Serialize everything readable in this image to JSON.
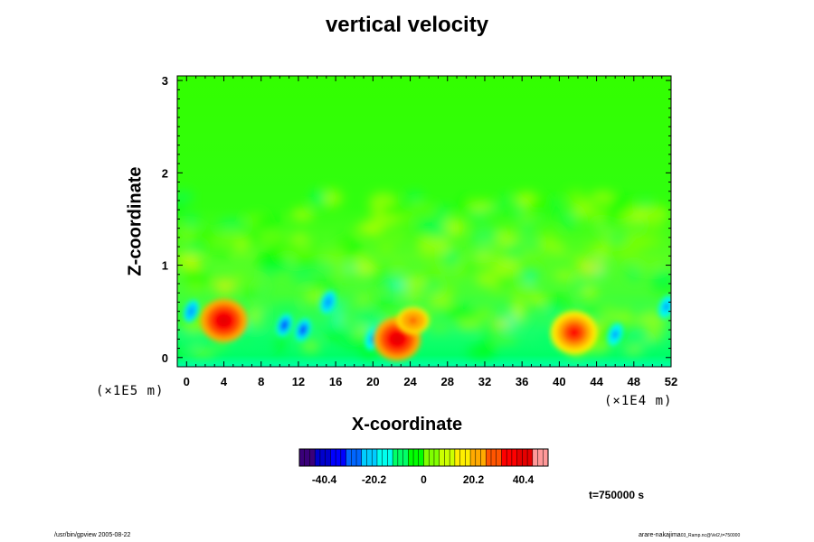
{
  "chart_data": {
    "type": "heatmap",
    "title": "vertical velocity",
    "xlabel": "X-coordinate",
    "ylabel": "Z-coordinate",
    "x_unit_label": "(×1E4 m)",
    "z_unit_label": "(×1E5 m)",
    "xlim": [
      -1,
      52
    ],
    "zlim": [
      -0.1,
      3.05
    ],
    "x_ticks": [
      0,
      4,
      8,
      12,
      16,
      20,
      24,
      28,
      32,
      36,
      40,
      44,
      48,
      52
    ],
    "z_ticks": [
      0,
      1,
      2,
      3
    ],
    "colorbar": {
      "range": [
        -50.5,
        50.5
      ],
      "tick_values": [
        -40.4,
        -20.2,
        0,
        20.2,
        40.4
      ],
      "tick_labels": [
        "-40.4",
        "-20.2",
        "0",
        "20.2",
        "40.4"
      ],
      "colors": [
        "#3a007a",
        "#0000cc",
        "#0000ff",
        "#0066ff",
        "#00ccff",
        "#00ffee",
        "#00ff66",
        "#00ff00",
        "#80ff00",
        "#ccff00",
        "#ffee00",
        "#ffaa00",
        "#ff5500",
        "#ff0000",
        "#e60000",
        "#ff9999"
      ]
    },
    "features": [
      {
        "type": "updraft",
        "x": 4.0,
        "z": 0.4,
        "w": 40
      },
      {
        "type": "downdraft",
        "x": 0.5,
        "z": 0.5,
        "w": -30
      },
      {
        "type": "downdraft",
        "x": 10.5,
        "z": 0.35,
        "w": -32
      },
      {
        "type": "downdraft",
        "x": 12.5,
        "z": 0.3,
        "w": -35
      },
      {
        "type": "downdraft",
        "x": 15.2,
        "z": 0.6,
        "w": -30
      },
      {
        "type": "downdraft",
        "x": 20.0,
        "z": 0.2,
        "w": -28
      },
      {
        "type": "updraft",
        "x": 22.6,
        "z": 0.2,
        "w": 42
      },
      {
        "type": "updraft",
        "x": 24.3,
        "z": 0.4,
        "w": 30
      },
      {
        "type": "updraft",
        "x": 41.6,
        "z": 0.27,
        "w": 35
      },
      {
        "type": "downdraft",
        "x": 46.0,
        "z": 0.25,
        "w": -26
      },
      {
        "type": "downdraft",
        "x": 51.5,
        "z": 0.55,
        "w": -28
      }
    ]
  },
  "annotations": {
    "time": "t=750000 s",
    "footer_left": "/usr/bin/gpview 2005-08-22",
    "footer_right": "arare-nakajima",
    "footer_right_small": "03_Ramp.nc@Vel2,t=750000"
  }
}
